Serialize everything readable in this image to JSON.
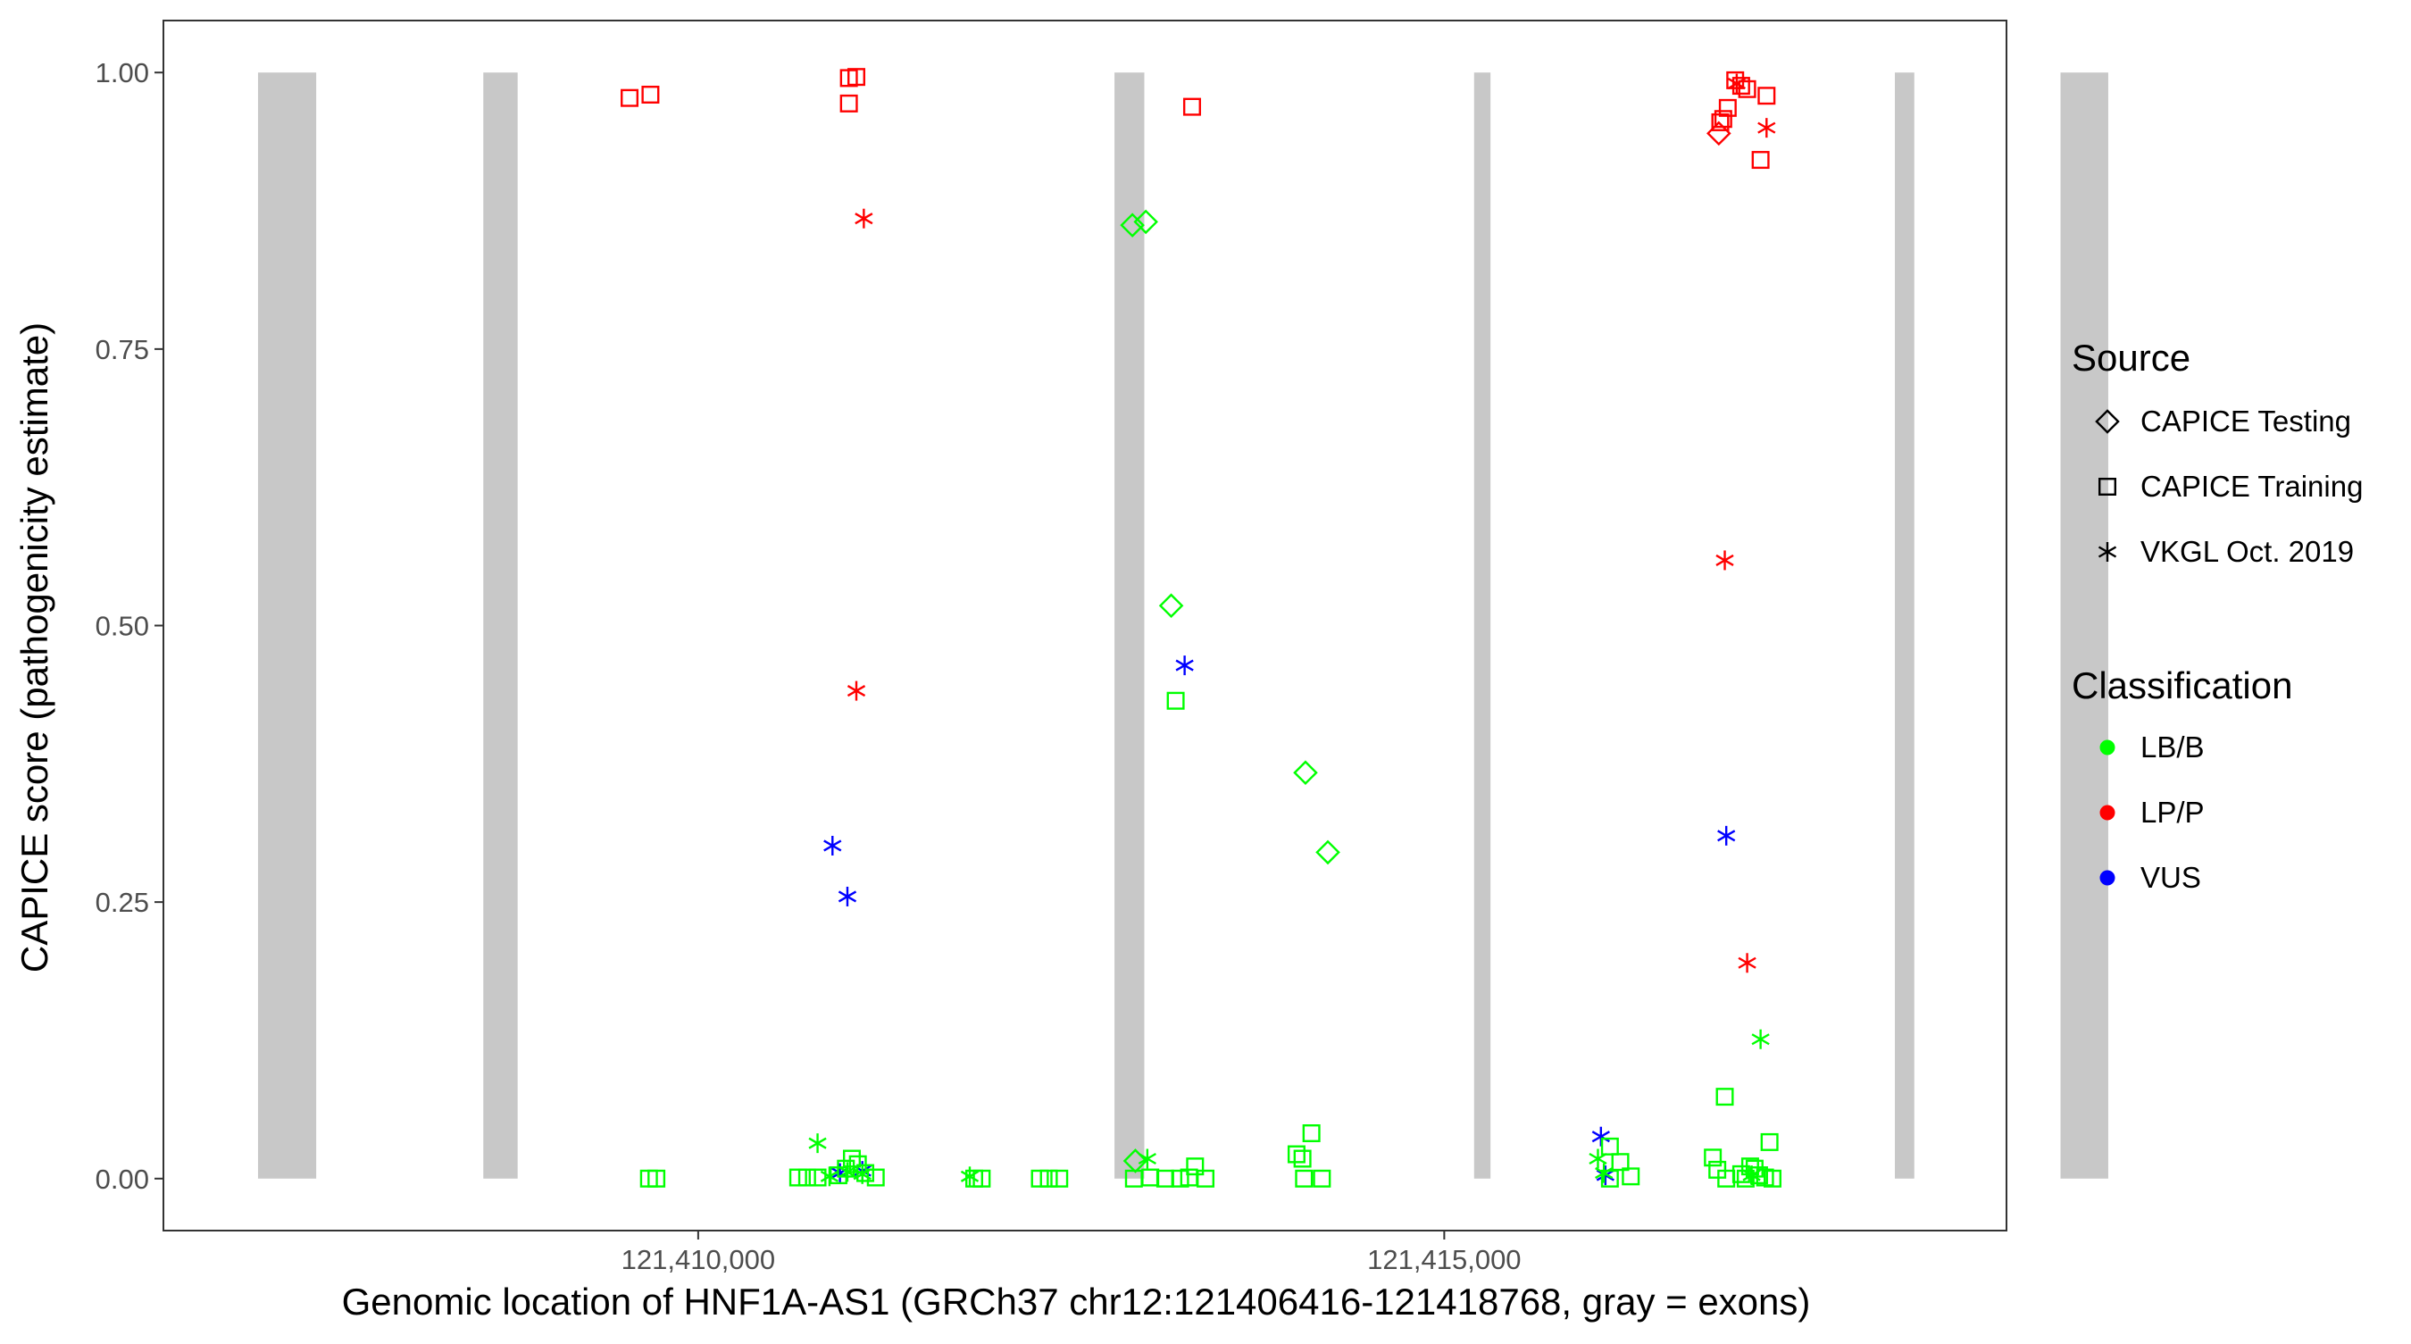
{
  "chart_data": {
    "type": "scatter",
    "title": "",
    "xlabel": "Genomic location of HNF1A-AS1 (GRCh37 chr12:121406416-121418768, gray = exons)",
    "ylabel": "CAPICE score (pathogenicity estimate)",
    "xlim": [
      121406416,
      121418768
    ],
    "ylim": [
      -0.047,
      1.047
    ],
    "x_ticks": [
      121410000,
      121415000
    ],
    "x_tick_labels": [
      "121,410,000",
      "121,415,000"
    ],
    "y_ticks": [
      0,
      0.25,
      0.5,
      0.75,
      1
    ],
    "y_tick_labels": [
      "0.00",
      "0.25",
      "0.50",
      "0.75",
      "1.00"
    ],
    "grid": false,
    "exons": [
      [
        121407050,
        121407440
      ],
      [
        121408560,
        121408790
      ],
      [
        121412790,
        121412990
      ],
      [
        121415200,
        121415310
      ],
      [
        121418020,
        121418150
      ],
      [
        121419130,
        121419450
      ]
    ],
    "legend_source": {
      "title": "Source",
      "items": [
        {
          "label": "CAPICE Testing",
          "shape": "diamond"
        },
        {
          "label": "CAPICE Training",
          "shape": "square"
        },
        {
          "label": "VKGL Oct. 2019",
          "shape": "asterisk"
        }
      ]
    },
    "legend_classification": {
      "title": "Classification",
      "items": [
        {
          "label": "LB/B",
          "color": "#00ff00"
        },
        {
          "label": "LP/P",
          "color": "#ff0000"
        },
        {
          "label": "VUS",
          "color": "#0000ff"
        }
      ]
    },
    "series": [
      {
        "source": "CAPICE Training",
        "classification": "LP/P",
        "points": [
          [
            121409540,
            0.977
          ],
          [
            121409680,
            0.98
          ],
          [
            121411010,
            0.995
          ],
          [
            121411060,
            0.996
          ],
          [
            121411010,
            0.972
          ],
          [
            121413310,
            0.969
          ],
          [
            121416850,
            0.955
          ],
          [
            121416870,
            0.958
          ],
          [
            121416900,
            0.968
          ],
          [
            121416950,
            0.993
          ],
          [
            121416990,
            0.988
          ],
          [
            121417030,
            0.985
          ],
          [
            121417120,
            0.921
          ],
          [
            121417160,
            0.979
          ]
        ]
      },
      {
        "source": "CAPICE Testing",
        "classification": "LP/P",
        "points": [
          [
            121416840,
            0.945
          ]
        ]
      },
      {
        "source": "VKGL Oct. 2019",
        "classification": "LP/P",
        "points": [
          [
            121411110,
            0.868
          ],
          [
            121411060,
            0.441
          ],
          [
            121416880,
            0.559
          ],
          [
            121416960,
            0.99
          ],
          [
            121417160,
            0.95
          ],
          [
            121417030,
            0.195
          ]
        ]
      },
      {
        "source": "VKGL Oct. 2019",
        "classification": "VUS",
        "points": [
          [
            121410900,
            0.301
          ],
          [
            121411000,
            0.255
          ],
          [
            121413260,
            0.464
          ],
          [
            121416890,
            0.31
          ],
          [
            121416050,
            0.038
          ],
          [
            121416080,
            0.003
          ],
          [
            121411100,
            0.007
          ],
          [
            121410950,
            0.005
          ]
        ]
      },
      {
        "source": "VKGL Oct. 2019",
        "classification": "LB/B",
        "points": [
          [
            121410800,
            0.032
          ],
          [
            121411000,
            0.006
          ],
          [
            121410880,
            0.002
          ],
          [
            121411100,
            0.004
          ],
          [
            121411820,
            0.002
          ],
          [
            121413010,
            0.018
          ],
          [
            121416030,
            0.018
          ],
          [
            121416070,
            0.005
          ],
          [
            121417120,
            0.126
          ],
          [
            121417060,
            0.003
          ]
        ]
      },
      {
        "source": "CAPICE Testing",
        "classification": "LB/B",
        "points": [
          [
            121412910,
            0.862
          ],
          [
            121413000,
            0.865
          ],
          [
            121413170,
            0.518
          ],
          [
            121414070,
            0.367
          ],
          [
            121414220,
            0.295
          ],
          [
            121412930,
            0.016
          ]
        ]
      },
      {
        "source": "CAPICE Training",
        "classification": "LB/B",
        "points": [
          [
            121413200,
            0.432
          ],
          [
            121416880,
            0.074
          ],
          [
            121409670,
            0.0
          ],
          [
            121409720,
            0.0
          ],
          [
            121410670,
            0.001
          ],
          [
            121410730,
            0.001
          ],
          [
            121410800,
            0.001
          ],
          [
            121410940,
            0.003
          ],
          [
            121410990,
            0.009
          ],
          [
            121411030,
            0.018
          ],
          [
            121411070,
            0.013
          ],
          [
            121411120,
            0.005
          ],
          [
            121411190,
            0.001
          ],
          [
            121411850,
            0.0
          ],
          [
            121411900,
            0.0
          ],
          [
            121412290,
            0.0
          ],
          [
            121412350,
            0.0
          ],
          [
            121412420,
            0.0
          ],
          [
            121412920,
            0.0
          ],
          [
            121413030,
            0.001
          ],
          [
            121413130,
            0.0
          ],
          [
            121413230,
            0.0
          ],
          [
            121413290,
            0.001
          ],
          [
            121413330,
            0.011
          ],
          [
            121413400,
            0.0
          ],
          [
            121414010,
            0.022
          ],
          [
            121414050,
            0.018
          ],
          [
            121414110,
            0.041
          ],
          [
            121414060,
            0.0
          ],
          [
            121414180,
            0.0
          ],
          [
            121416110,
            0.029
          ],
          [
            121416180,
            0.015
          ],
          [
            121416250,
            0.002
          ],
          [
            121416110,
            0.0
          ],
          [
            121416800,
            0.019
          ],
          [
            121416830,
            0.008
          ],
          [
            121416890,
            0.0
          ],
          [
            121416990,
            0.004
          ],
          [
            121417050,
            0.011
          ],
          [
            121417080,
            0.009
          ],
          [
            121417110,
            0.003
          ],
          [
            121417180,
            0.033
          ],
          [
            121417150,
            0.001
          ],
          [
            121417200,
            0.0
          ],
          [
            121417020,
            0.0
          ]
        ]
      }
    ]
  }
}
